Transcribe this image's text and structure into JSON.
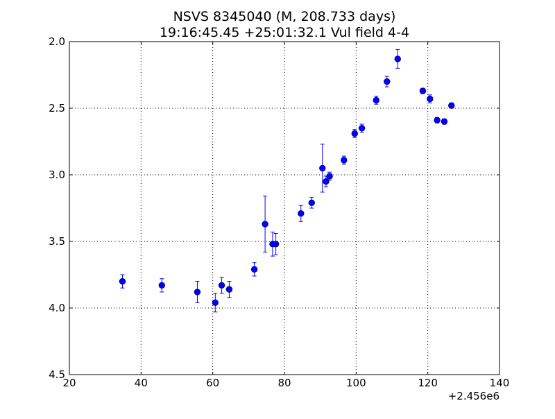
{
  "chart_data": {
    "type": "scatter",
    "title": "NSVS 8345040 (M, 208.733 days)",
    "subtitle": "19:16:45.45 +25:01:32.1 Vul field 4-4",
    "xlabel": "",
    "ylabel": "",
    "x_offset_label": "+2.456e6",
    "xlim": [
      20,
      140
    ],
    "ylim": [
      4.5,
      2.0
    ],
    "y_inverted": true,
    "x_ticks": [
      "20",
      "40",
      "60",
      "80",
      "100",
      "120",
      "140"
    ],
    "y_ticks": [
      "2.0",
      "2.5",
      "3.0",
      "3.5",
      "4.0",
      "4.5"
    ],
    "grid": true,
    "legend": "none",
    "colors": {
      "marker": "#0000ff",
      "marker_edge": "#00007a",
      "errorbar": "#0000ff",
      "grid": "#000000",
      "axes": "#000000"
    },
    "series": [
      {
        "points": [
          {
            "x": 34.8,
            "y": 3.8,
            "err": 0.05
          },
          {
            "x": 45.8,
            "y": 3.83,
            "err": 0.05
          },
          {
            "x": 55.7,
            "y": 3.88,
            "err": 0.08
          },
          {
            "x": 60.7,
            "y": 3.96,
            "err": 0.07
          },
          {
            "x": 62.5,
            "y": 3.83,
            "err": 0.06
          },
          {
            "x": 64.6,
            "y": 3.86,
            "err": 0.06
          },
          {
            "x": 71.6,
            "y": 3.71,
            "err": 0.05
          },
          {
            "x": 74.6,
            "y": 3.37,
            "err": 0.21
          },
          {
            "x": 76.7,
            "y": 3.52,
            "err": 0.09
          },
          {
            "x": 77.6,
            "y": 3.52,
            "err": 0.08
          },
          {
            "x": 84.6,
            "y": 3.29,
            "err": 0.06
          },
          {
            "x": 87.6,
            "y": 3.21,
            "err": 0.04
          },
          {
            "x": 90.6,
            "y": 2.95,
            "err": 0.18
          },
          {
            "x": 91.6,
            "y": 3.05,
            "err": 0.04
          },
          {
            "x": 92.6,
            "y": 3.01,
            "err": 0.03
          },
          {
            "x": 96.6,
            "y": 2.89,
            "err": 0.03
          },
          {
            "x": 99.6,
            "y": 2.69,
            "err": 0.03
          },
          {
            "x": 101.6,
            "y": 2.65,
            "err": 0.03
          },
          {
            "x": 105.6,
            "y": 2.44,
            "err": 0.03
          },
          {
            "x": 108.6,
            "y": 2.3,
            "err": 0.04
          },
          {
            "x": 111.6,
            "y": 2.13,
            "err": 0.07
          },
          {
            "x": 118.6,
            "y": 2.37,
            "err": 0.02
          },
          {
            "x": 120.6,
            "y": 2.43,
            "err": 0.03
          },
          {
            "x": 122.6,
            "y": 2.59,
            "err": 0.02
          },
          {
            "x": 124.6,
            "y": 2.6,
            "err": 0.02
          },
          {
            "x": 126.6,
            "y": 2.48,
            "err": 0.02
          }
        ]
      }
    ]
  }
}
